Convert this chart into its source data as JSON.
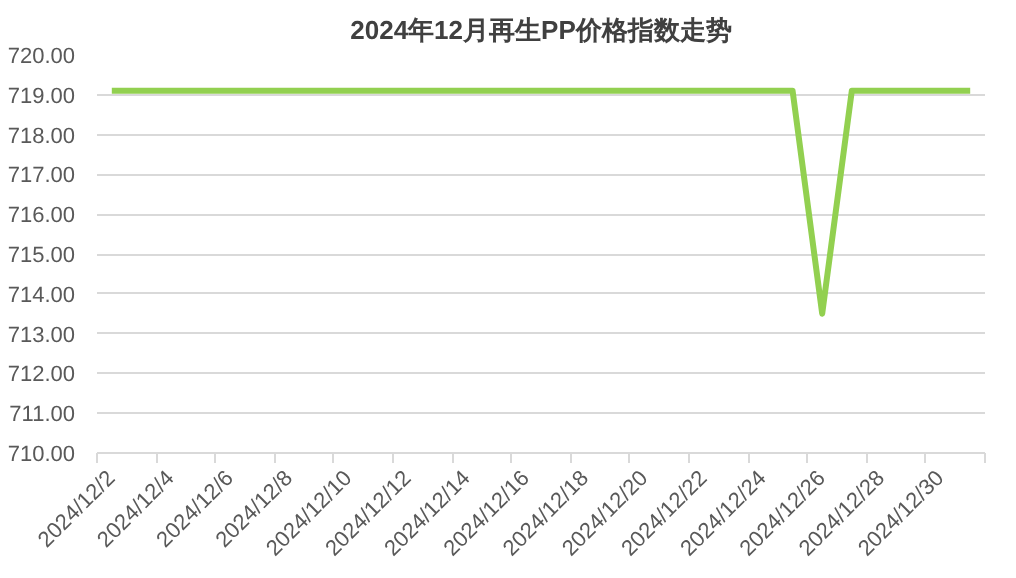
{
  "chart_data": {
    "type": "line",
    "title": "2024年12月再生PP价格指数走势",
    "categories": [
      "2024/12/2",
      null,
      "2024/12/4",
      null,
      "2024/12/6",
      null,
      "2024/12/8",
      null,
      "2024/12/10",
      null,
      "2024/12/12",
      null,
      "2024/12/14",
      null,
      "2024/12/16",
      null,
      "2024/12/18",
      null,
      "2024/12/20",
      null,
      "2024/12/22",
      null,
      "2024/12/24",
      null,
      "2024/12/26",
      null,
      "2024/12/28",
      null,
      "2024/12/30",
      null
    ],
    "series": [
      {
        "color": "#92d050",
        "values": [
          719.1,
          719.1,
          719.1,
          719.1,
          719.1,
          719.1,
          719.1,
          719.1,
          719.1,
          719.1,
          719.1,
          719.1,
          719.1,
          719.1,
          719.1,
          719.1,
          719.1,
          719.1,
          719.1,
          719.1,
          719.1,
          719.1,
          719.1,
          719.1,
          713.5,
          719.1,
          719.1,
          719.1,
          719.1,
          719.1
        ]
      }
    ],
    "ylim": [
      710,
      720
    ],
    "yticks": [
      {
        "value": 710,
        "label": "710.00"
      },
      {
        "value": 711,
        "label": "711.00"
      },
      {
        "value": 712,
        "label": "712.00"
      },
      {
        "value": 713,
        "label": "713.00"
      },
      {
        "value": 714,
        "label": "714.00"
      },
      {
        "value": 715,
        "label": "715.00"
      },
      {
        "value": 716,
        "label": "716.00"
      },
      {
        "value": 717,
        "label": "717.00"
      },
      {
        "value": 718,
        "label": "718.00"
      },
      {
        "value": 719,
        "label": "719.00"
      },
      {
        "value": 720,
        "label": "720.00"
      }
    ],
    "grid": "y",
    "marker": "none",
    "line_style": "solid"
  }
}
